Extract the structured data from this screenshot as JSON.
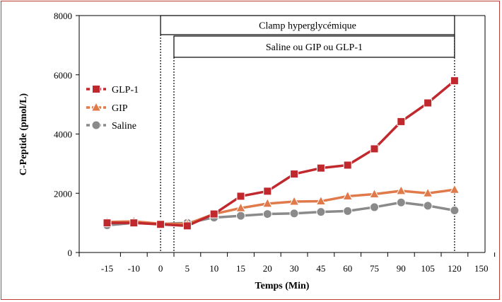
{
  "chart_data": {
    "type": "line",
    "title": "",
    "xlabel": "Temps (Min)",
    "ylabel": "C-Peptide (pmol/L)",
    "ylim": [
      0,
      8000
    ],
    "yticks": [
      "0",
      "2000",
      "4000",
      "6000",
      "8000"
    ],
    "categories": [
      "-15",
      "-10",
      "0",
      "5",
      "10",
      "15",
      "20",
      "30",
      "45",
      "60",
      "75",
      "90",
      "105",
      "120",
      "150"
    ],
    "grid": false,
    "legend_position": "left",
    "annotations": [
      {
        "label": "Clamp hyperglycémique",
        "from": "0",
        "to": "120"
      },
      {
        "label": "Saline ou GIP ou GLP-1",
        "from": "2.5",
        "to": "120"
      }
    ],
    "series": [
      {
        "name": "GLP-1",
        "color": "#c0282d",
        "marker": "square",
        "x": [
          "-15",
          "-10",
          "0",
          "5",
          "10",
          "15",
          "20",
          "30",
          "45",
          "60",
          "75",
          "90",
          "105",
          "120"
        ],
        "values": [
          1000,
          1000,
          950,
          900,
          1300,
          1900,
          2070,
          2650,
          2850,
          2950,
          3500,
          4420,
          5050,
          5800
        ]
      },
      {
        "name": "GIP",
        "color": "#e07a4a",
        "marker": "triangle",
        "x": [
          "-15",
          "-10",
          "0",
          "5",
          "10",
          "15",
          "20",
          "30",
          "45",
          "60",
          "75",
          "90",
          "105",
          "120"
        ],
        "values": [
          1030,
          1050,
          970,
          960,
          1300,
          1500,
          1650,
          1720,
          1730,
          1900,
          1970,
          2080,
          2000,
          2120
        ]
      },
      {
        "name": "Saline",
        "color": "#8a8a8a",
        "marker": "circle",
        "x": [
          "-15",
          "-10",
          "0",
          "5",
          "10",
          "15",
          "20",
          "30",
          "45",
          "60",
          "75",
          "90",
          "105",
          "120"
        ],
        "values": [
          920,
          1000,
          960,
          1000,
          1180,
          1240,
          1300,
          1320,
          1370,
          1400,
          1530,
          1690,
          1580,
          1420
        ]
      }
    ]
  }
}
